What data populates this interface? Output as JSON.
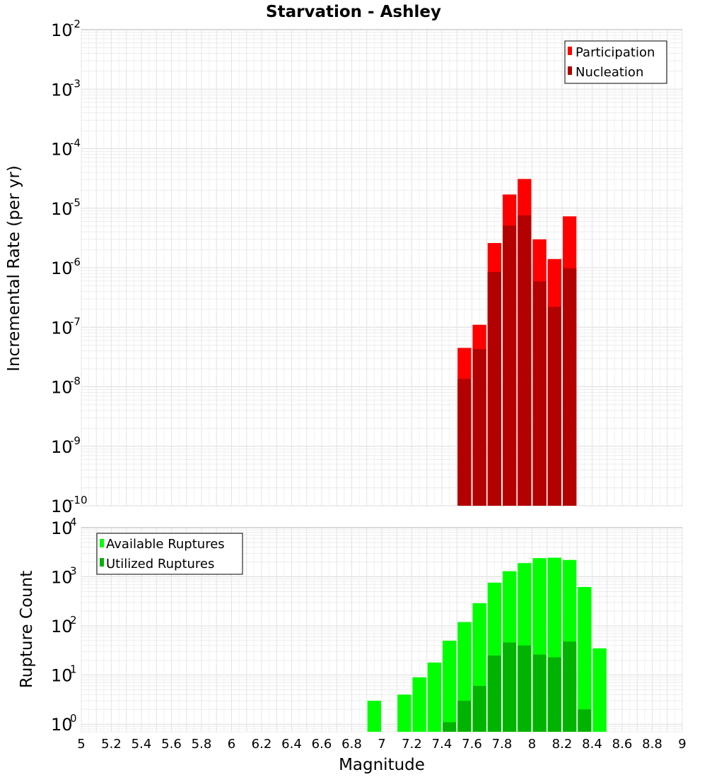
{
  "chart_data": {
    "title": "Starvation - Ashley",
    "xlabel": "Magnitude",
    "x_ticks": [
      "5",
      "5.2",
      "5.4",
      "5.6",
      "5.8",
      "6",
      "6.2",
      "6.4",
      "6.6",
      "6.8",
      "7",
      "7.2",
      "7.4",
      "7.6",
      "7.8",
      "8",
      "8.2",
      "8.4",
      "8.6",
      "8.8",
      "9"
    ],
    "xlim": [
      5,
      9
    ],
    "bin_width": 0.1,
    "panels": [
      {
        "id": "rate",
        "type": "bar",
        "yscale": "log",
        "ylabel": "Incremental Rate (per yr)",
        "ylim": [
          1e-10,
          0.01
        ],
        "y_tick_base": "10",
        "y_tick_exponents": [
          "-10",
          "-9",
          "-8",
          "-7",
          "-6",
          "-5",
          "-4",
          "-3",
          "-2"
        ],
        "legend_position": "top-right",
        "series": [
          {
            "name": "Participation",
            "color": "#ff0000",
            "x": [
              7.55,
              7.65,
              7.75,
              7.85,
              7.95,
              8.05,
              8.15,
              8.25
            ],
            "values": [
              4.5e-08,
              1.1e-07,
              2.6e-06,
              1.7e-05,
              3.1e-05,
              3e-06,
              1.4e-06,
              7.3e-06
            ]
          },
          {
            "name": "Nucleation",
            "color": "#b30000",
            "x": [
              7.55,
              7.65,
              7.75,
              7.85,
              7.95,
              8.05,
              8.15,
              8.25
            ],
            "values": [
              1.35e-08,
              4.3e-08,
              8.5e-07,
              5.1e-06,
              7.6e-06,
              5.9e-07,
              2.2e-07,
              9.8e-07
            ]
          }
        ]
      },
      {
        "id": "count",
        "type": "bar",
        "yscale": "log",
        "ylabel": "Rupture Count",
        "ylim": [
          0.7,
          10000
        ],
        "y_tick_base": "10",
        "y_tick_exponents": [
          "0",
          "1",
          "2",
          "3",
          "4"
        ],
        "legend_position": "top-left",
        "series": [
          {
            "name": "Available Ruptures",
            "color": "#00ff00",
            "x": [
              6.95,
              7.15,
              7.25,
              7.35,
              7.45,
              7.55,
              7.65,
              7.75,
              7.85,
              7.95,
              8.05,
              8.15,
              8.25,
              8.35,
              8.45
            ],
            "values": [
              3,
              4,
              9,
              18,
              50,
              120,
              290,
              760,
              1300,
              1900,
              2400,
              2450,
              2200,
              620,
              35
            ]
          },
          {
            "name": "Utilized Ruptures",
            "color": "#00b300",
            "x": [
              7.45,
              7.55,
              7.65,
              7.75,
              7.85,
              7.95,
              8.05,
              8.15,
              8.25,
              8.35
            ],
            "values": [
              1.1,
              3,
              6,
              25,
              46,
              40,
              26,
              23,
              48,
              2
            ]
          }
        ]
      }
    ]
  }
}
